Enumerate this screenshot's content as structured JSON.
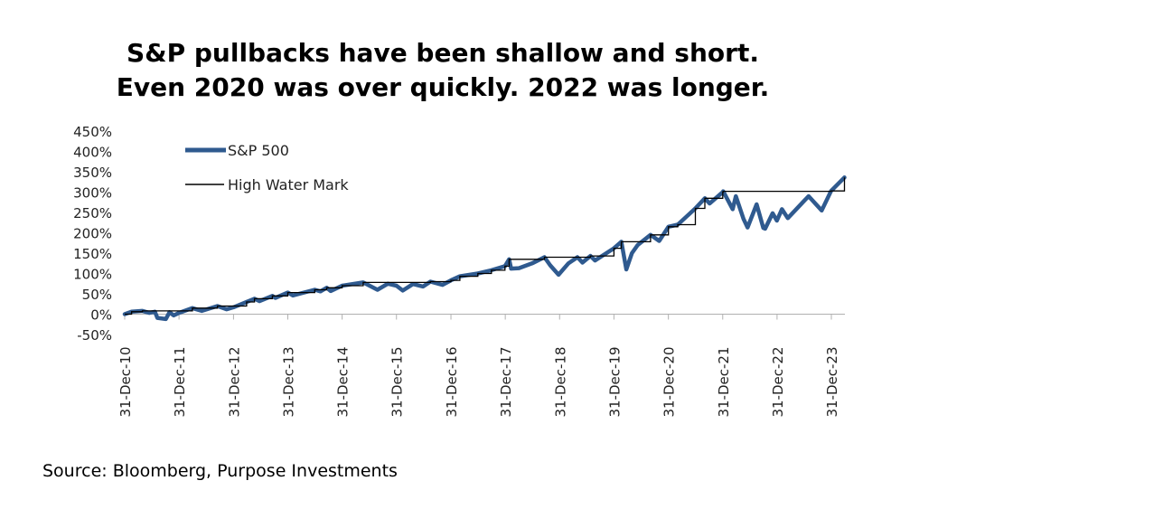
{
  "header": {
    "title_line1": "S&P pullbacks have been shallow and short.",
    "title_line2": "Even 2020 was over quickly. 2022 was longer."
  },
  "footer": {
    "source": "Source: Bloomberg, Purpose Investments"
  },
  "chart_data": {
    "type": "line",
    "title": "S&P pullbacks have been shallow and short. Even 2020 was over quickly. 2022 was longer.",
    "xlabel": "",
    "ylabel": "",
    "ylim": [
      -50,
      450
    ],
    "y_ticks": [
      "-50%",
      "0%",
      "50%",
      "100%",
      "150%",
      "200%",
      "250%",
      "300%",
      "350%",
      "400%",
      "450%"
    ],
    "x_ticks": [
      "31-Dec-10",
      "31-Dec-11",
      "31-Dec-12",
      "31-Dec-13",
      "31-Dec-14",
      "31-Dec-15",
      "31-Dec-16",
      "31-Dec-17",
      "31-Dec-18",
      "31-Dec-19",
      "31-Dec-20",
      "31-Dec-21",
      "31-Dec-22",
      "31-Dec-23"
    ],
    "xlim": [
      "2010-12-31",
      "2024-03-31"
    ],
    "legend_position": "top-left",
    "grid": false,
    "series": [
      {
        "name": "S&P 500",
        "color": "#2f5a8f",
        "points": [
          [
            "2010-12-31",
            0
          ],
          [
            "2011-02-15",
            6
          ],
          [
            "2011-04-29",
            8
          ],
          [
            "2011-06-15",
            3
          ],
          [
            "2011-07-22",
            6
          ],
          [
            "2011-08-08",
            -9
          ],
          [
            "2011-10-03",
            -12
          ],
          [
            "2011-10-28",
            5
          ],
          [
            "2011-11-25",
            -3
          ],
          [
            "2011-12-30",
            3
          ],
          [
            "2012-03-30",
            15
          ],
          [
            "2012-06-01",
            8
          ],
          [
            "2012-09-14",
            20
          ],
          [
            "2012-11-15",
            12
          ],
          [
            "2012-12-31",
            17
          ],
          [
            "2013-03-29",
            30
          ],
          [
            "2013-05-21",
            38
          ],
          [
            "2013-06-24",
            32
          ],
          [
            "2013-09-18",
            45
          ],
          [
            "2013-10-08",
            40
          ],
          [
            "2013-12-31",
            53
          ],
          [
            "2014-02-03",
            46
          ],
          [
            "2014-06-30",
            60
          ],
          [
            "2014-08-07",
            56
          ],
          [
            "2014-09-18",
            65
          ],
          [
            "2014-10-15",
            57
          ],
          [
            "2014-12-31",
            70
          ],
          [
            "2015-05-21",
            78
          ],
          [
            "2015-08-25",
            60
          ],
          [
            "2015-11-03",
            75
          ],
          [
            "2015-12-31",
            70
          ],
          [
            "2016-02-11",
            58
          ],
          [
            "2016-04-20",
            74
          ],
          [
            "2016-06-27",
            68
          ],
          [
            "2016-08-15",
            80
          ],
          [
            "2016-11-04",
            72
          ],
          [
            "2016-12-31",
            83
          ],
          [
            "2017-03-01",
            93
          ],
          [
            "2017-06-30",
            100
          ],
          [
            "2017-09-29",
            108
          ],
          [
            "2017-12-29",
            118
          ],
          [
            "2018-01-26",
            135
          ],
          [
            "2018-02-08",
            112
          ],
          [
            "2018-04-02",
            113
          ],
          [
            "2018-06-29",
            125
          ],
          [
            "2018-09-20",
            140
          ],
          [
            "2018-10-29",
            120
          ],
          [
            "2018-12-24",
            97
          ],
          [
            "2019-02-28",
            125
          ],
          [
            "2019-04-30",
            140
          ],
          [
            "2019-06-03",
            127
          ],
          [
            "2019-07-26",
            143
          ],
          [
            "2019-08-26",
            132
          ],
          [
            "2019-12-31",
            162
          ],
          [
            "2020-02-19",
            178
          ],
          [
            "2020-03-23",
            110
          ],
          [
            "2020-04-30",
            150
          ],
          [
            "2020-06-08",
            170
          ],
          [
            "2020-09-02",
            195
          ],
          [
            "2020-10-30",
            180
          ],
          [
            "2020-12-31",
            215
          ],
          [
            "2021-03-04",
            220
          ],
          [
            "2021-06-30",
            260
          ],
          [
            "2021-09-02",
            285
          ],
          [
            "2021-10-04",
            272
          ],
          [
            "2021-12-31",
            300
          ],
          [
            "2022-01-03",
            302
          ],
          [
            "2022-03-08",
            258
          ],
          [
            "2022-03-29",
            290
          ],
          [
            "2022-05-20",
            234
          ],
          [
            "2022-06-16",
            213
          ],
          [
            "2022-08-16",
            270
          ],
          [
            "2022-09-30",
            212
          ],
          [
            "2022-10-12",
            210
          ],
          [
            "2022-12-01",
            248
          ],
          [
            "2022-12-30",
            230
          ],
          [
            "2023-02-02",
            258
          ],
          [
            "2023-03-13",
            236
          ],
          [
            "2023-07-31",
            290
          ],
          [
            "2023-10-27",
            255
          ],
          [
            "2023-12-29",
            303
          ],
          [
            "2024-03-28",
            336
          ]
        ]
      },
      {
        "name": "High Water Mark",
        "color": "#000000",
        "points": [
          [
            "2010-12-31",
            0
          ],
          [
            "2011-02-15",
            6
          ],
          [
            "2011-04-29",
            8
          ],
          [
            "2012-03-30",
            15
          ],
          [
            "2012-09-14",
            20
          ],
          [
            "2013-03-29",
            30
          ],
          [
            "2013-05-21",
            38
          ],
          [
            "2013-09-18",
            45
          ],
          [
            "2013-12-31",
            53
          ],
          [
            "2014-06-30",
            60
          ],
          [
            "2014-09-18",
            65
          ],
          [
            "2014-12-31",
            70
          ],
          [
            "2015-05-21",
            78
          ],
          [
            "2016-08-15",
            80
          ],
          [
            "2016-12-31",
            83
          ],
          [
            "2017-03-01",
            93
          ],
          [
            "2017-06-30",
            100
          ],
          [
            "2017-09-29",
            108
          ],
          [
            "2017-12-29",
            118
          ],
          [
            "2018-01-26",
            135
          ],
          [
            "2018-09-20",
            140
          ],
          [
            "2019-07-26",
            143
          ],
          [
            "2019-12-31",
            162
          ],
          [
            "2020-02-19",
            178
          ],
          [
            "2020-09-02",
            195
          ],
          [
            "2020-12-31",
            215
          ],
          [
            "2021-03-04",
            220
          ],
          [
            "2021-06-30",
            260
          ],
          [
            "2021-09-02",
            285
          ],
          [
            "2021-12-31",
            300
          ],
          [
            "2022-01-03",
            302
          ],
          [
            "2023-12-29",
            303
          ],
          [
            "2024-03-28",
            336
          ]
        ]
      }
    ]
  }
}
